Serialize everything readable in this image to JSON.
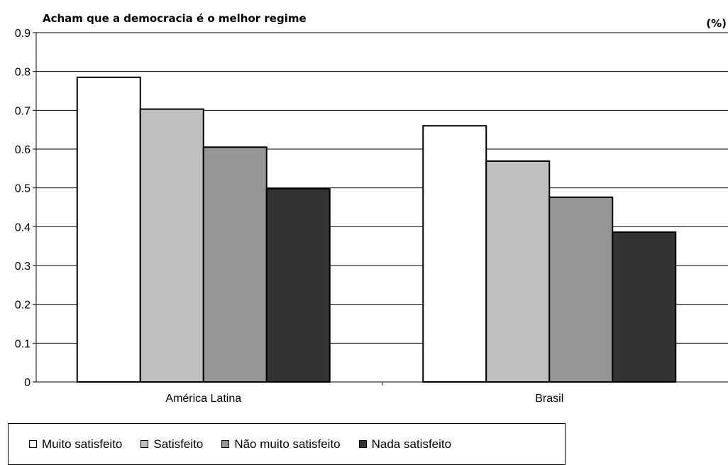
{
  "chart_data": {
    "type": "bar",
    "title": "Acham que a democracia é o melhor regime",
    "unit_label": "(%)",
    "categories": [
      "América Latina",
      "Brasil"
    ],
    "series": [
      {
        "name": "Muito satisfeito",
        "color": "#ffffff",
        "values": [
          0.785,
          0.66
        ]
      },
      {
        "name": "Satisfeito",
        "color": "#c0c0c0",
        "values": [
          0.703,
          0.569
        ]
      },
      {
        "name": "Não muito satisfeito",
        "color": "#969696",
        "values": [
          0.605,
          0.476
        ]
      },
      {
        "name": "Nada satisfeito",
        "color": "#333333",
        "values": [
          0.498,
          0.386
        ]
      }
    ],
    "ylim": [
      0,
      0.9
    ],
    "yticks": [
      "0",
      "0.1",
      "0.2",
      "0.3",
      "0.4",
      "0.5",
      "0.6",
      "0.7",
      "0.8",
      "0.9"
    ],
    "grid": true,
    "legend_position": "bottom-left"
  }
}
